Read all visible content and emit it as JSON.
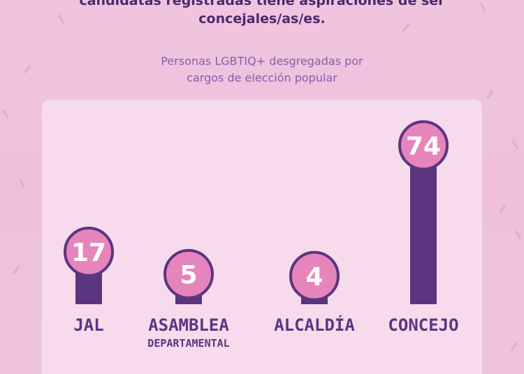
{
  "intro": {
    "line1": "candidatas registradas tiene aspiraciones de ser",
    "line2": "concejales/as/es."
  },
  "subtitle": {
    "line1": "Personas LGBTIQ+ desgregadas por",
    "line2": "cargos de elección popular"
  },
  "colors": {
    "background": "#f0c4df",
    "panel": "#f6e1ef",
    "bar": "#5b3580",
    "circle": "#e685bb",
    "circle_stroke": "#5b3580",
    "value_text": "#ffffff",
    "label_text": "#5b3580",
    "intro_text": "#4a2a6a",
    "subtitle_text": "#8a5cb0"
  },
  "chart_data": {
    "type": "bar",
    "title": "Personas LGBTIQ+ desgregadas por cargos de elección popular",
    "xlabel": "",
    "ylabel": "",
    "categories": [
      {
        "line1": "JAL",
        "line2": ""
      },
      {
        "line1": "ASAMBLEA",
        "line2": "DEPARTAMENTAL"
      },
      {
        "line1": "ALCALDÍA",
        "line2": ""
      },
      {
        "line1": "CONCEJO",
        "line2": ""
      }
    ],
    "values": [
      17,
      5,
      4,
      74
    ],
    "value_labels": [
      "17",
      "5",
      "4",
      "74"
    ],
    "grid": false,
    "legend": "none"
  }
}
